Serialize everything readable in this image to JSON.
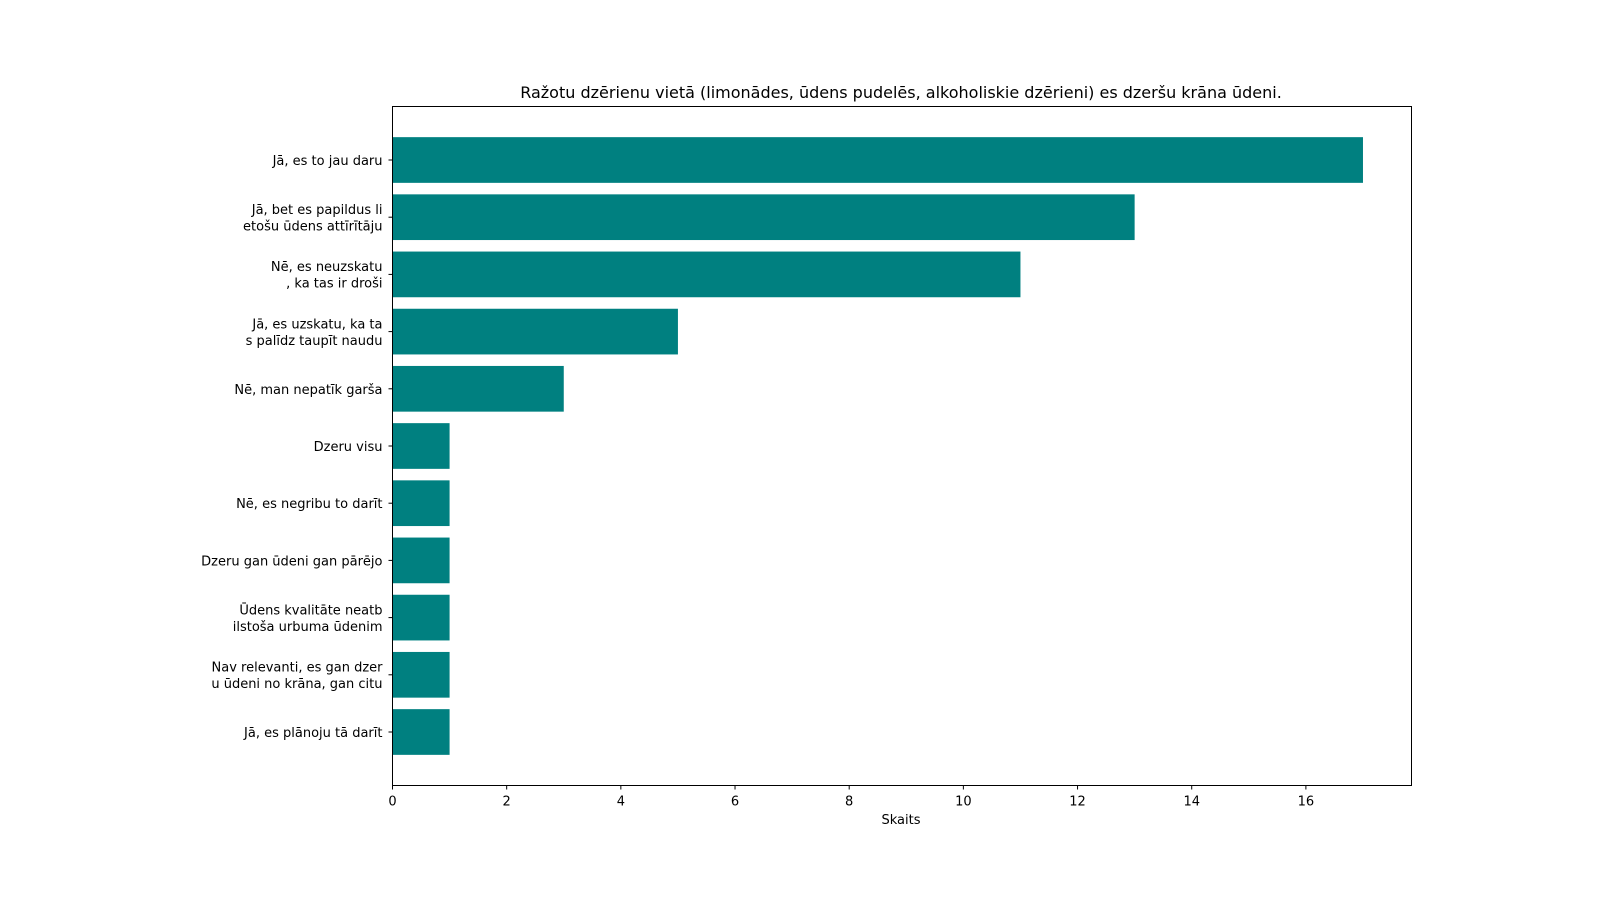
{
  "chart_data": {
    "type": "bar",
    "orientation": "horizontal",
    "title": "Ražotu dzērienu vietā (limonādes, ūdens pudelēs, alkoholiskie dzērieni) es dzeršu krāna ūdeni.",
    "xlabel": "Skaits",
    "ylabel": "",
    "xlim": [
      0,
      17.85
    ],
    "xticks": [
      0,
      2,
      4,
      6,
      8,
      10,
      12,
      14,
      16
    ],
    "grid": false,
    "bar_color": "#008080",
    "categories": [
      "Jā, es to jau daru",
      "Jā, bet es papildus li\netošu ūdens attīrītāju",
      "Nē, es neuzskatu\n, ka tas ir droši",
      "Jā, es uzskatu, ka ta\ns palīdz taupīt naudu",
      "Nē, man nepatīk garša",
      "Dzeru visu",
      "Nē, es negribu to darīt",
      "Dzeru gan ūdeni gan pārējo",
      "Ūdens kvalitāte neatb\nilstoša urbuma ūdenim",
      "Nav relevanti, es gan dzer\nu ūdeni no krāna, gan citu",
      "Jā, es plānoju tā darīt"
    ],
    "values": [
      17,
      13,
      11,
      5,
      3,
      1,
      1,
      1,
      1,
      1,
      1
    ]
  }
}
